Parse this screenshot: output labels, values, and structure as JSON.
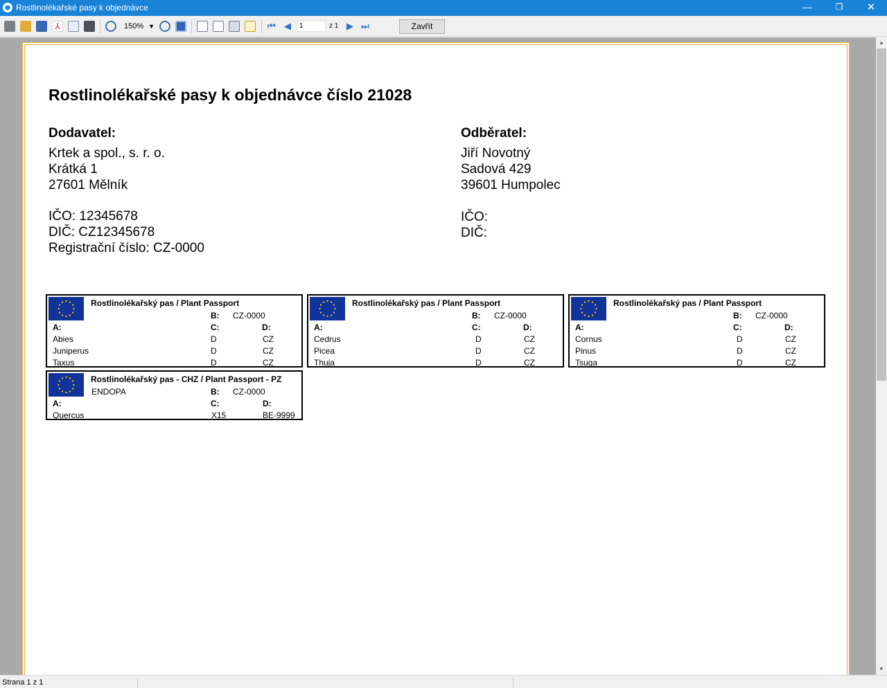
{
  "window": {
    "title": "Rostlinolékařské pasy k objednávce",
    "minimize": "—",
    "maximize": "❐",
    "close": "✕"
  },
  "toolbar": {
    "zoom": "150%",
    "page_value": "1",
    "page_of": "z 1",
    "close_label": "Zavřít"
  },
  "status": {
    "page_text": "Strana 1 z 1"
  },
  "document": {
    "title": "Rostlinolékařské pasy k objednávce číslo 21028",
    "supplier": {
      "heading": "Dodavatel:",
      "name": "Krtek a spol., s. r. o.",
      "street": "Krátká 1",
      "city": "27601  Mělník",
      "ico": "IČO: 12345678",
      "dic": "DIČ: CZ12345678",
      "reg": "Registrační číslo: CZ-0000"
    },
    "customer": {
      "heading": "Odběratel:",
      "name": "Jiří Novotný",
      "street": "Sadová 429",
      "city": "39601  Humpolec",
      "ico": "IČO:",
      "dic": "DIČ:"
    }
  },
  "passports": [
    {
      "title": "Rostlinolékařský pas / Plant Passport",
      "subtitle": "",
      "b_label": "B:",
      "b_value": "CZ-0000",
      "a_label": "A:",
      "c_label": "C:",
      "d_label": "D:",
      "rows": [
        {
          "a": "Abies",
          "c": "D",
          "d": "CZ"
        },
        {
          "a": "Juniperus",
          "c": "D",
          "d": "CZ"
        },
        {
          "a": "Taxus",
          "c": "D",
          "d": "CZ"
        }
      ]
    },
    {
      "title": "Rostlinolékařský pas / Plant Passport",
      "subtitle": "",
      "b_label": "B:",
      "b_value": "CZ-0000",
      "a_label": "A:",
      "c_label": "C:",
      "d_label": "D:",
      "rows": [
        {
          "a": "Cedrus",
          "c": "D",
          "d": "CZ"
        },
        {
          "a": "Picea",
          "c": "D",
          "d": "CZ"
        },
        {
          "a": "Thuja",
          "c": "D",
          "d": "CZ"
        }
      ]
    },
    {
      "title": "Rostlinolékařský pas / Plant Passport",
      "subtitle": "",
      "b_label": "B:",
      "b_value": "CZ-0000",
      "a_label": "A:",
      "c_label": "C:",
      "d_label": "D:",
      "rows": [
        {
          "a": "Cornus",
          "c": "D",
          "d": "CZ"
        },
        {
          "a": "Pinus",
          "c": "D",
          "d": "CZ"
        },
        {
          "a": "Tsuga",
          "c": "D",
          "d": "CZ"
        }
      ]
    },
    {
      "title": "Rostlinolékařský pas - CHZ / Plant Passport - PZ",
      "subtitle": "ENDOPA",
      "b_label": "B:",
      "b_value": "CZ-0000",
      "a_label": "A:",
      "c_label": "C:",
      "d_label": "D:",
      "rows": [
        {
          "a": "Quercus",
          "c": "X15",
          "d": "BE-9999"
        }
      ]
    }
  ],
  "colors": {
    "titlebar": "#1883d7",
    "page_border": "#eab32b",
    "eu_blue": "#103299",
    "eu_star": "#ffdd00"
  },
  "icons": [
    "print-icon",
    "open-icon",
    "save-icon",
    "pdf-icon",
    "email-icon",
    "find-icon",
    "zoom-in-icon",
    "zoom-out-icon",
    "fit-page-icon",
    "single-page-icon",
    "two-page-icon",
    "search-doc-icon",
    "edit-icon",
    "first-page-icon",
    "prev-page-icon",
    "next-page-icon",
    "last-page-icon"
  ]
}
